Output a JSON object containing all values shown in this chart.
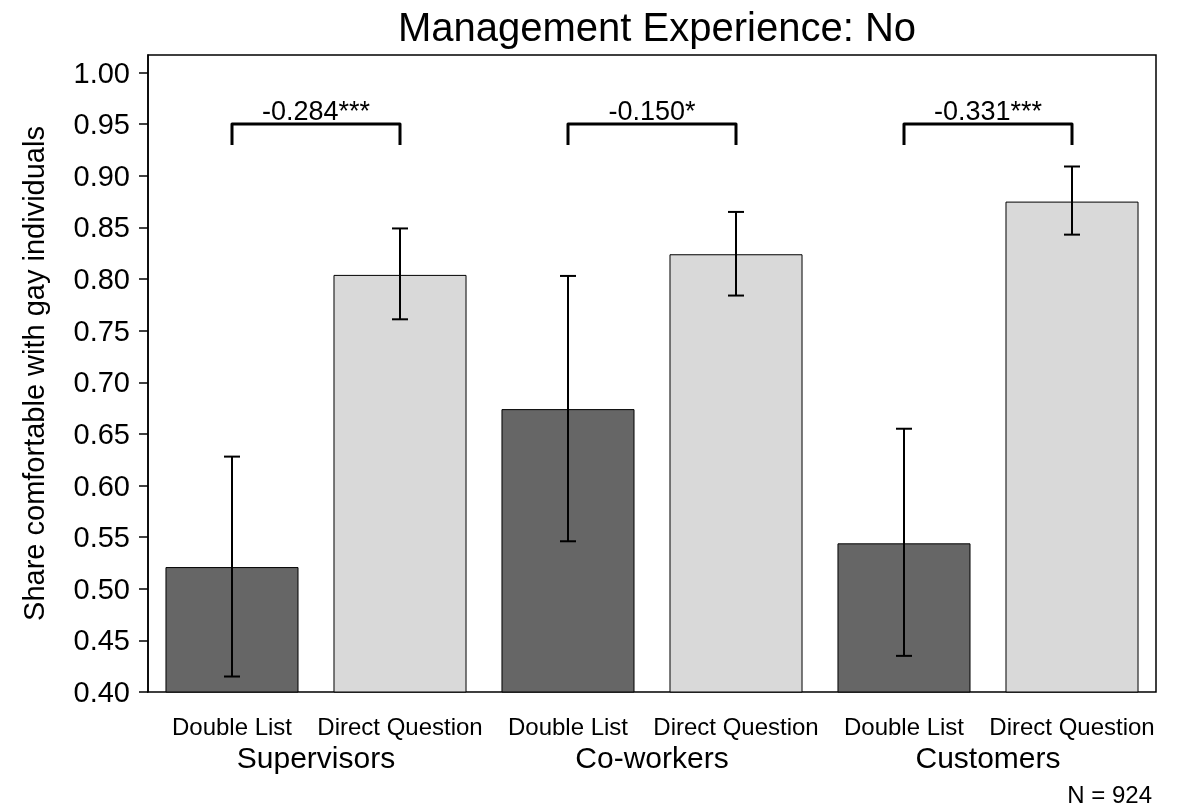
{
  "chart_data": {
    "type": "bar",
    "title": "Management Experience: No",
    "ylabel": "Share comfortable with gay individuals",
    "categories": [
      "Supervisors",
      "Co-workers",
      "Customers"
    ],
    "series": [
      {
        "name": "Double List",
        "color": "#666666",
        "values": [
          0.521,
          0.674,
          0.544
        ],
        "errors": [
          [
            0.415,
            0.628
          ],
          [
            0.546,
            0.803
          ],
          [
            0.435,
            0.655
          ]
        ]
      },
      {
        "name": "Direct Question",
        "color": "#d9d9d9",
        "values": [
          0.804,
          0.824,
          0.875
        ],
        "errors": [
          [
            0.761,
            0.849
          ],
          [
            0.784,
            0.865
          ],
          [
            0.843,
            0.909
          ]
        ]
      }
    ],
    "ylim": [
      0.4,
      1.017
    ],
    "yticks": [
      {
        "value": 0.4,
        "label": "0.40"
      },
      {
        "value": 0.45,
        "label": "0.45"
      },
      {
        "value": 0.5,
        "label": "0.50"
      },
      {
        "value": 0.55,
        "label": "0.55"
      },
      {
        "value": 0.6,
        "label": "0.60"
      },
      {
        "value": 0.65,
        "label": "0.65"
      },
      {
        "value": 0.7,
        "label": "0.70"
      },
      {
        "value": 0.75,
        "label": "0.75"
      },
      {
        "value": 0.8,
        "label": "0.80"
      },
      {
        "value": 0.85,
        "label": "0.85"
      },
      {
        "value": 0.9,
        "label": "0.90"
      },
      {
        "value": 0.95,
        "label": "0.95"
      },
      {
        "value": 1.0,
        "label": "1.00"
      }
    ],
    "annotations": [
      "-0.284***",
      "-0.150*",
      "-0.331***",
      "N = 924"
    ]
  }
}
